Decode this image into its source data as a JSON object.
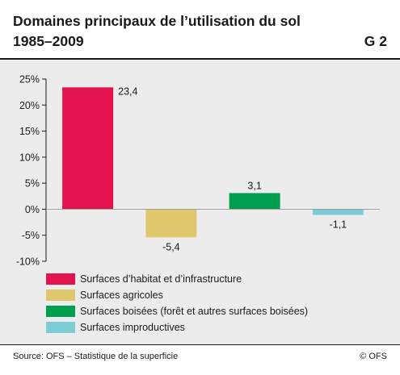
{
  "header": {
    "title_line1": "Domaines principaux de l’utilisation du sol",
    "title_line2": "1985–2009",
    "code": "G 2"
  },
  "chart_data": {
    "type": "bar",
    "categories": [
      "Surfaces d’habitat et d’infrastructure",
      "Surfaces agricoles",
      "Surfaces boisées (forêt et autres surfaces boisées)",
      "Surfaces improductives"
    ],
    "values": [
      23.4,
      -5.4,
      3.1,
      -1.1
    ],
    "value_labels": [
      "23,4",
      "-5,4",
      "3,1",
      "-1,1"
    ],
    "colors": [
      "#e2134f",
      "#dfc76e",
      "#009e4f",
      "#7ecbd8"
    ],
    "ylim": [
      -10,
      25
    ],
    "yticks": [
      25,
      20,
      15,
      10,
      5,
      0,
      -5,
      -10
    ],
    "ytick_labels": [
      "25%",
      "20%",
      "15%",
      "10%",
      "5%",
      "0%",
      "-5%",
      "-10%"
    ],
    "legend_position": "bottom",
    "grid": false
  },
  "legend": [
    {
      "label": "Surfaces d’habitat et d’infrastructure",
      "color": "#e2134f"
    },
    {
      "label": "Surfaces agricoles",
      "color": "#dfc76e"
    },
    {
      "label": "Surfaces boisées (forêt et autres surfaces boisées)",
      "color": "#009e4f"
    },
    {
      "label": "Surfaces improductives",
      "color": "#7ecbd8"
    }
  ],
  "footer": {
    "source": "Source: OFS – Statistique de la superficie",
    "copyright": "© OFS"
  }
}
